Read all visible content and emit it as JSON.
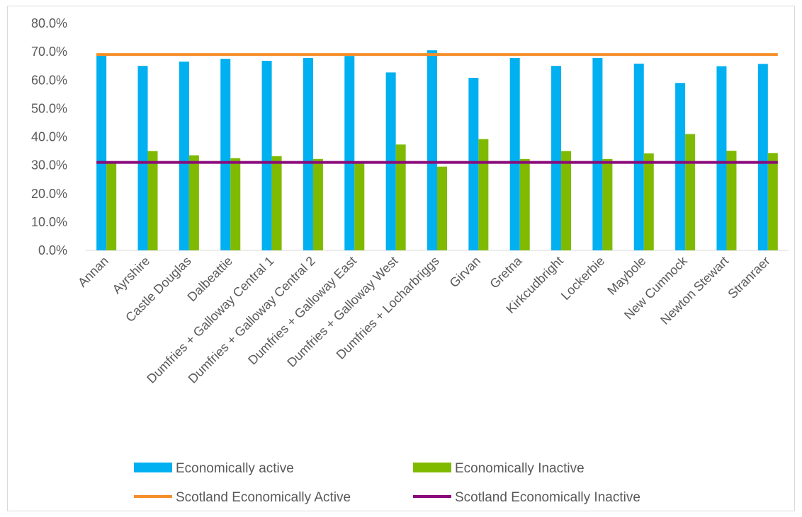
{
  "chart_data": {
    "type": "bar",
    "title": "",
    "xlabel": "",
    "ylabel": "",
    "ylim": [
      0,
      80
    ],
    "y_ticks": [
      "0.0%",
      "10.0%",
      "20.0%",
      "30.0%",
      "40.0%",
      "50.0%",
      "60.0%",
      "70.0%",
      "80.0%"
    ],
    "grid": false,
    "legend_position": "bottom",
    "categories": [
      "Annan",
      "Ayrshire",
      "Castle Douglas",
      "Dalbeattie",
      "Dumfries + Galloway Central 1",
      "Dumfries + Galloway Central 2",
      "Dumfries + Galloway East",
      "Dumfries + Galloway West",
      "Dumfries + Locharbriggs",
      "Girvan",
      "Gretna",
      "Kirkcudbright",
      "Lockerbie",
      "Maybole",
      "New Cumnock",
      "Newton Stewart",
      "Stranraer"
    ],
    "series": [
      {
        "name": "Economically active",
        "type": "bar",
        "color": "#00b0f0",
        "values": [
          69.2,
          65.0,
          66.5,
          67.5,
          66.8,
          67.8,
          68.5,
          62.7,
          70.5,
          60.8,
          67.8,
          65.0,
          67.8,
          65.8,
          59.0,
          64.9,
          65.7
        ]
      },
      {
        "name": "Economically Inactive",
        "type": "bar",
        "color": "#7fba00",
        "values": [
          30.8,
          35.0,
          33.5,
          32.5,
          33.2,
          32.2,
          31.0,
          37.3,
          29.5,
          39.2,
          32.2,
          35.0,
          32.2,
          34.2,
          41.0,
          35.1,
          34.3
        ]
      },
      {
        "name": "Scotland Economically Active",
        "type": "line",
        "color": "#f58f2a",
        "values": [
          69.0,
          69.0,
          69.0,
          69.0,
          69.0,
          69.0,
          69.0,
          69.0,
          69.0,
          69.0,
          69.0,
          69.0,
          69.0,
          69.0,
          69.0,
          69.0,
          69.0
        ]
      },
      {
        "name": "Scotland Economically Inactive",
        "type": "line",
        "color": "#8b0a7a",
        "values": [
          31.0,
          31.0,
          31.0,
          31.0,
          31.0,
          31.0,
          31.0,
          31.0,
          31.0,
          31.0,
          31.0,
          31.0,
          31.0,
          31.0,
          31.0,
          31.0,
          31.0
        ]
      }
    ]
  }
}
